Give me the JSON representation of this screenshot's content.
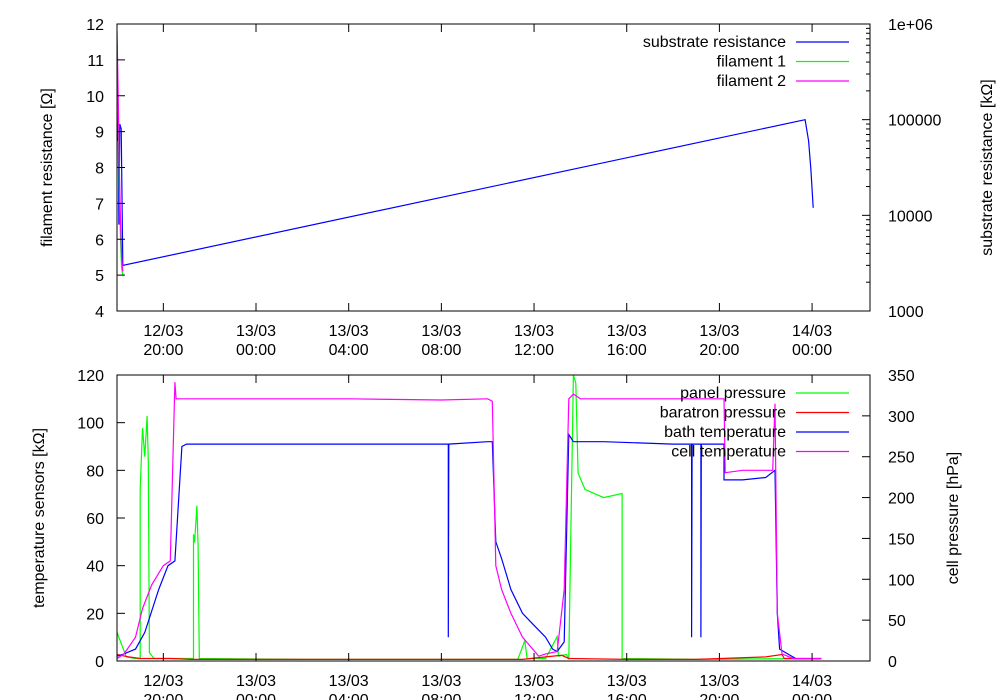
{
  "chart_data": [
    {
      "type": "line",
      "ylabel": "filament resistance [Ω]",
      "y2label": "substrate resistance [kΩ]",
      "ylim": [
        4,
        12
      ],
      "y2lim": [
        1000,
        1000000
      ],
      "y2scale": "log",
      "y2_ticks": [
        "1000",
        "10000",
        "100000",
        "1e+06"
      ],
      "legend_position": "top-right",
      "grid": false,
      "series": [
        {
          "name": "substrate resistance",
          "color": "#0000ff",
          "axis": "y2",
          "points": [
            [
              0.02,
              60000
            ],
            [
              0.05,
              120000
            ],
            [
              0.08,
              8000
            ],
            [
              0.12,
              90000
            ],
            [
              0.18,
              80000
            ],
            [
              0.25,
              3000
            ],
            [
              29.7,
              100000
            ],
            [
              29.85,
              60000
            ],
            [
              29.95,
              30000
            ],
            [
              30.05,
              12000
            ]
          ]
        },
        {
          "name": "filament 1",
          "color": "#00ff00",
          "axis": "y",
          "points": [
            [
              0.0,
              11.5
            ],
            [
              0.05,
              9.5
            ],
            [
              0.1,
              7.5
            ],
            [
              0.15,
              6.0
            ],
            [
              0.2,
              5.2
            ],
            [
              0.25,
              5.0
            ]
          ]
        },
        {
          "name": "filament 2",
          "color": "#ff00ff",
          "axis": "y",
          "points": [
            [
              0.0,
              11.8
            ],
            [
              0.05,
              10.0
            ],
            [
              0.1,
              8.0
            ],
            [
              0.15,
              6.5
            ],
            [
              0.2,
              5.5
            ],
            [
              0.25,
              5.1
            ]
          ]
        }
      ]
    },
    {
      "type": "line",
      "ylabel": "temperature sensors [kΩ]",
      "y2label": "cell pressure [hPa]",
      "ylim": [
        0,
        120
      ],
      "y2lim": [
        0,
        350
      ],
      "legend_position": "top-right",
      "grid": false,
      "series": [
        {
          "name": "panel pressure",
          "color": "#00ff00",
          "axis": "y2",
          "points": [
            [
              0,
              35
            ],
            [
              0.4,
              5
            ],
            [
              0.8,
              3
            ],
            [
              1.0,
              3
            ],
            [
              1.0,
              210
            ],
            [
              1.1,
              285
            ],
            [
              1.2,
              250
            ],
            [
              1.3,
              300
            ],
            [
              1.35,
              245
            ],
            [
              1.4,
              10
            ],
            [
              1.6,
              3
            ],
            [
              3.3,
              3
            ],
            [
              3.3,
              155
            ],
            [
              3.35,
              145
            ],
            [
              3.45,
              190
            ],
            [
              3.5,
              140
            ],
            [
              3.55,
              3
            ],
            [
              8,
              2
            ],
            [
              16,
              2
            ],
            [
              17.3,
              2
            ],
            [
              17.6,
              25
            ],
            [
              17.7,
              3
            ],
            [
              18.5,
              3
            ],
            [
              19.0,
              30
            ],
            [
              19.05,
              6
            ],
            [
              19.4,
              8
            ],
            [
              19.5,
              2
            ],
            [
              19.7,
              350
            ],
            [
              19.8,
              340
            ],
            [
              19.9,
              230
            ],
            [
              20.2,
              210
            ],
            [
              21,
              200
            ],
            [
              21.8,
              205
            ],
            [
              21.8,
              3
            ],
            [
              25,
              2
            ],
            [
              29.9,
              3
            ],
            [
              30.4,
              3
            ]
          ]
        },
        {
          "name": "baratron pressure",
          "color": "#ff0000",
          "axis": "y2",
          "points": [
            [
              0,
              8
            ],
            [
              0.5,
              5
            ],
            [
              1,
              3
            ],
            [
              2.3,
              3
            ],
            [
              3.2,
              2
            ],
            [
              4,
              2
            ],
            [
              10,
              2
            ],
            [
              16,
              2
            ],
            [
              17.5,
              2
            ],
            [
              18.5,
              5
            ],
            [
              19.2,
              7
            ],
            [
              19.5,
              3
            ],
            [
              22,
              2
            ],
            [
              25,
              2
            ],
            [
              28,
              5
            ],
            [
              28.7,
              8
            ],
            [
              28.8,
              3
            ],
            [
              30.4,
              3
            ]
          ]
        },
        {
          "name": "bath temperature",
          "color": "#0000ff",
          "axis": "y",
          "points": [
            [
              0,
              2
            ],
            [
              0.3,
              3
            ],
            [
              0.8,
              5
            ],
            [
              1.2,
              12
            ],
            [
              1.8,
              30
            ],
            [
              2.2,
              40
            ],
            [
              2.5,
              42
            ],
            [
              2.8,
              90
            ],
            [
              3,
              91
            ],
            [
              8,
              91
            ],
            [
              11,
              91
            ],
            [
              14.3,
              91
            ],
            [
              14.3,
              10
            ],
            [
              14.32,
              91
            ],
            [
              16,
              92
            ],
            [
              16.2,
              92
            ],
            [
              16.35,
              50
            ],
            [
              16.6,
              43
            ],
            [
              17.0,
              30
            ],
            [
              17.5,
              20
            ],
            [
              18,
              15
            ],
            [
              18.5,
              10
            ],
            [
              18.8,
              5
            ],
            [
              19.0,
              4
            ],
            [
              19.3,
              8
            ],
            [
              19.5,
              95
            ],
            [
              19.7,
              92
            ],
            [
              21,
              92
            ],
            [
              24,
              91
            ],
            [
              24.8,
              91
            ],
            [
              24.8,
              10
            ],
            [
              24.82,
              91
            ],
            [
              25.2,
              91
            ],
            [
              25.2,
              10
            ],
            [
              25.22,
              91
            ],
            [
              26.2,
              91
            ],
            [
              26.2,
              76
            ],
            [
              27,
              76
            ],
            [
              28,
              77
            ],
            [
              28.4,
              80
            ],
            [
              28.5,
              20
            ],
            [
              28.6,
              5
            ],
            [
              29.3,
              1
            ],
            [
              30.4,
              1
            ]
          ]
        },
        {
          "name": "cell temperature",
          "color": "#ff00ff",
          "axis": "y",
          "points": [
            [
              0,
              1
            ],
            [
              0.3,
              3
            ],
            [
              0.8,
              10
            ],
            [
              1.1,
              22
            ],
            [
              1.5,
              32
            ],
            [
              2.0,
              40
            ],
            [
              2.3,
              42
            ],
            [
              2.5,
              117
            ],
            [
              2.55,
              110
            ],
            [
              3,
              110
            ],
            [
              6,
              110
            ],
            [
              10,
              110
            ],
            [
              14,
              109.5
            ],
            [
              16,
              110
            ],
            [
              16.2,
              109
            ],
            [
              16.35,
              40
            ],
            [
              16.6,
              30
            ],
            [
              17.0,
              20
            ],
            [
              17.5,
              10
            ],
            [
              18.2,
              2
            ],
            [
              18.5,
              3
            ],
            [
              19.0,
              4
            ],
            [
              19.3,
              30
            ],
            [
              19.5,
              110
            ],
            [
              19.7,
              112
            ],
            [
              20,
              110
            ],
            [
              22,
              110
            ],
            [
              26,
              110
            ],
            [
              26.2,
              110
            ],
            [
              26.25,
              79
            ],
            [
              27,
              80
            ],
            [
              27.9,
              80
            ],
            [
              28.3,
              80
            ],
            [
              28.4,
              108
            ],
            [
              28.5,
              20
            ],
            [
              28.7,
              3
            ],
            [
              29.2,
              1
            ],
            [
              30.4,
              1
            ]
          ]
        }
      ]
    }
  ],
  "x_axis": {
    "tick_labels": [
      {
        "date": "12/03",
        "time": "20:00",
        "hours": 2
      },
      {
        "date": "13/03",
        "time": "00:00",
        "hours": 6
      },
      {
        "date": "13/03",
        "time": "04:00",
        "hours": 10
      },
      {
        "date": "13/03",
        "time": "08:00",
        "hours": 14
      },
      {
        "date": "13/03",
        "time": "12:00",
        "hours": 18
      },
      {
        "date": "13/03",
        "time": "16:00",
        "hours": 22
      },
      {
        "date": "13/03",
        "time": "20:00",
        "hours": 26
      },
      {
        "date": "14/03",
        "time": "00:00",
        "hours": 30
      }
    ],
    "range_hours": [
      0,
      32.5
    ]
  }
}
